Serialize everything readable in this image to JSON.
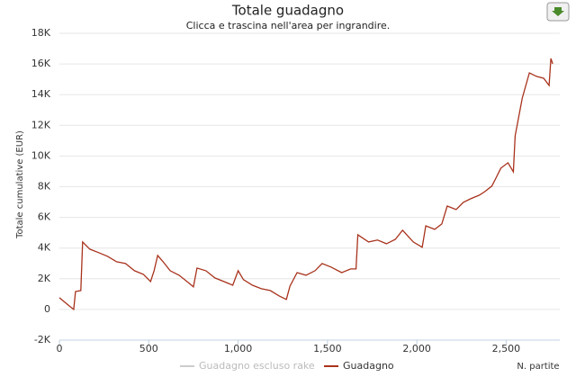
{
  "chart_data": {
    "type": "line",
    "title": "Totale guadagno",
    "subtitle": "Clicca e trascina nell'area per ingrandire.",
    "y_label": "Totale cumulative (EUR)",
    "x_label": "N. partite",
    "xlim": [
      0,
      2800
    ],
    "xticks": [
      0,
      500,
      {
        "value": 1000,
        "label": "1,000"
      },
      {
        "value": 1500,
        "label": "1,500"
      },
      {
        "value": 2000,
        "label": "2,000"
      },
      {
        "value": 2500,
        "label": "2,500"
      }
    ],
    "ylim": [
      -2000,
      18000
    ],
    "yticks": [
      {
        "value": -2000,
        "label": "-2K"
      },
      0,
      {
        "value": 2000,
        "label": "2K"
      },
      {
        "value": 4000,
        "label": "4K"
      },
      {
        "value": 6000,
        "label": "6K"
      },
      {
        "value": 8000,
        "label": "8K"
      },
      {
        "value": 10000,
        "label": "10K"
      },
      {
        "value": 12000,
        "label": "12K"
      },
      {
        "value": 14000,
        "label": "14K"
      },
      {
        "value": 16000,
        "label": "16K"
      },
      {
        "value": 18000,
        "label": "18K"
      }
    ],
    "grid": true,
    "x": [
      0,
      30,
      60,
      80,
      90,
      120,
      130,
      170,
      220,
      270,
      320,
      370,
      420,
      470,
      510,
      530,
      550,
      580,
      620,
      670,
      720,
      750,
      770,
      820,
      870,
      920,
      970,
      1000,
      1030,
      1080,
      1130,
      1180,
      1230,
      1270,
      1290,
      1330,
      1380,
      1430,
      1470,
      1520,
      1580,
      1630,
      1660,
      1670,
      1730,
      1780,
      1830,
      1880,
      1920,
      1980,
      2030,
      2050,
      2100,
      2140,
      2170,
      2220,
      2260,
      2300,
      2350,
      2380,
      2420,
      2440,
      2470,
      2510,
      2540,
      2550,
      2590,
      2630,
      2670,
      2710,
      2740,
      2750,
      2760
    ],
    "series": [
      {
        "name": "Guadagno escluso rake",
        "color": "#cccccc",
        "visible": false
      },
      {
        "name": "Guadagno",
        "color": "#a8321c",
        "visible": true,
        "values": [
          760,
          470,
          180,
          0,
          1170,
          1230,
          4400,
          3930,
          3700,
          3460,
          3110,
          2990,
          2520,
          2290,
          1820,
          2520,
          3520,
          3110,
          2520,
          2230,
          1760,
          1470,
          2700,
          2520,
          2050,
          1820,
          1580,
          2520,
          1940,
          1580,
          1350,
          1230,
          880,
          650,
          1520,
          2400,
          2230,
          2520,
          2990,
          2760,
          2400,
          2640,
          2640,
          4870,
          4400,
          4520,
          4280,
          4570,
          5160,
          4400,
          4050,
          5450,
          5220,
          5570,
          6740,
          6510,
          6980,
          7210,
          7450,
          7680,
          8040,
          8500,
          9210,
          9560,
          8970,
          11320,
          13780,
          15420,
          15190,
          15070,
          14600,
          16360,
          16010
        ]
      }
    ]
  }
}
